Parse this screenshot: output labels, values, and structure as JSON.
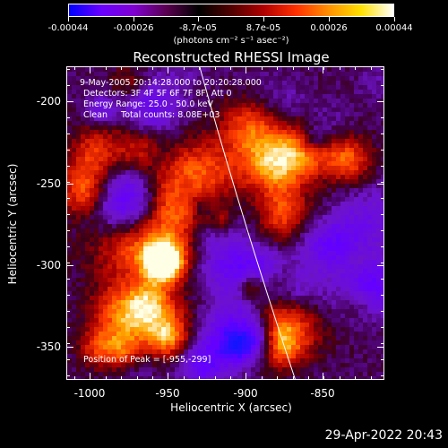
{
  "colorbar": {
    "labels": [
      "-0.00044",
      "-0.00026",
      "-8.7e-05",
      "8.7e-05",
      "0.00026",
      "0.00044"
    ],
    "unit": "(photons cm⁻² s⁻¹ asec⁻²)",
    "colors": [
      "#0000ff",
      "#6a00ff",
      "#8000d0",
      "#5a0050",
      "#000000",
      "#500000",
      "#b00000",
      "#ff3000",
      "#ff9000",
      "#ffe000",
      "#ffffff"
    ]
  },
  "title": "Reconstructed RHESSI Image",
  "annotations": {
    "time_range": "9-May-2005 20:14:28.000 to 20:20:28.000",
    "detectors": "Detectors: 3F 4F 5F 6F 7F 8F, Att 0",
    "energy": "Energy Range: 25.0 - 50.0 keV",
    "clean_counts": "Clean     Total counts: 8.08E+03",
    "peak": "Position of Peak = [-955,-299]"
  },
  "axes": {
    "xlabel": "Heliocentric X (arcsec)",
    "ylabel": "Heliocentric Y (arcsec)",
    "xticks": [
      "-1000",
      "-950",
      "-900",
      "-850"
    ],
    "yticks": [
      "-200",
      "-250",
      "-300",
      "-350"
    ]
  },
  "timestamp": "29-Apr-2022 20:43"
}
